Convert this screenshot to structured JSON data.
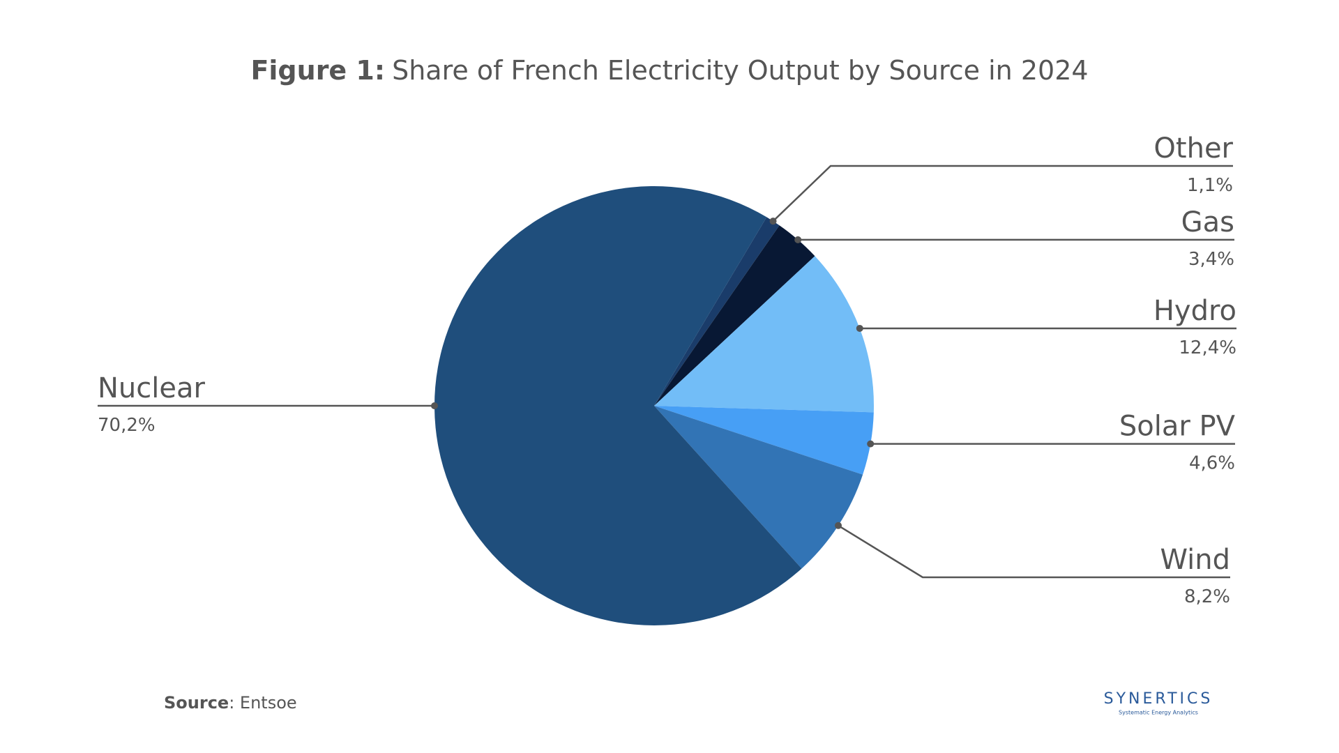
{
  "chart_data": {
    "type": "pie",
    "title_prefix": "Figure 1:",
    "title": "Share of French Electricity Output by Source in 2024",
    "categories": [
      "Other",
      "Gas",
      "Hydro",
      "Solar PV",
      "Wind",
      "Nuclear"
    ],
    "values": [
      1.1,
      3.4,
      12.4,
      4.6,
      8.2,
      70.2
    ],
    "value_labels": [
      "1,1%",
      "3,4%",
      "12,4%",
      "4,6%",
      "8,2%",
      "70,2%"
    ],
    "colors": [
      "#1a3c6a",
      "#081834",
      "#72bdf7",
      "#479ff5",
      "#3274b5",
      "#1f4e7c"
    ]
  },
  "footer": {
    "source_label": "Source",
    "source": ": Entsoe",
    "logo": "SYNERTICS",
    "logo_tagline": "Systematic Energy Analytics"
  }
}
